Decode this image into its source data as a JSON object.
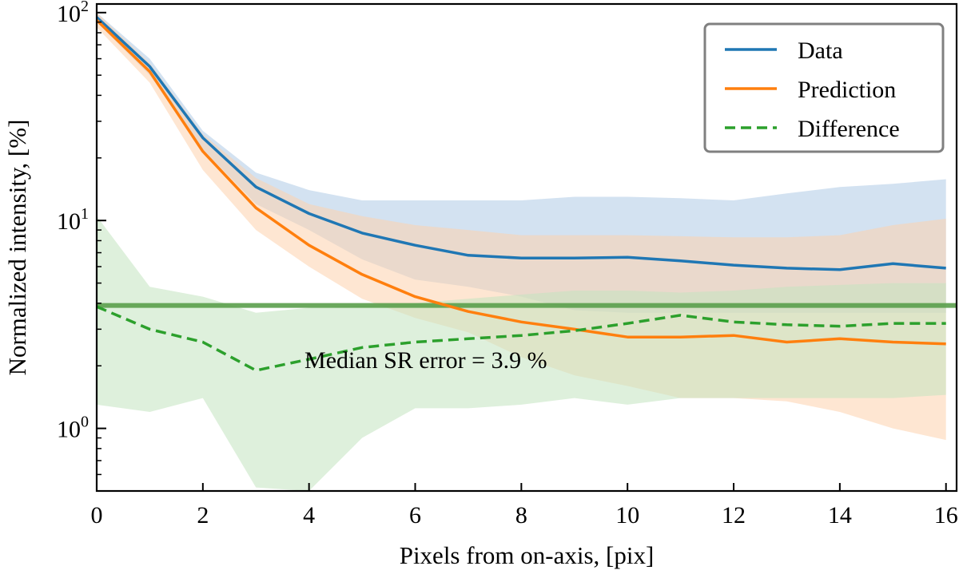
{
  "chart_data": {
    "type": "line",
    "xlabel": "Pixels from on-axis, [pix]",
    "ylabel": "Normalized intensity, [%]",
    "xlim": [
      0,
      16.2
    ],
    "ylim": [
      0.5,
      110
    ],
    "yscale": "log",
    "x_ticks": [
      0,
      2,
      4,
      6,
      8,
      10,
      12,
      14,
      16
    ],
    "y_ticks": [
      {
        "value": 1,
        "base": "10",
        "exp": "0"
      },
      {
        "value": 10,
        "base": "10",
        "exp": "1"
      },
      {
        "value": 100,
        "base": "10",
        "exp": "2"
      }
    ],
    "grid": false,
    "legend_position": "top-right",
    "x": [
      0,
      1,
      2,
      3,
      4,
      5,
      6,
      7,
      8,
      9,
      10,
      11,
      12,
      13,
      14,
      15,
      16
    ],
    "series": [
      {
        "name": "Data",
        "color": "#1f77b4",
        "style": "solid",
        "values": [
          95,
          55,
          25,
          14.5,
          10.8,
          8.7,
          7.6,
          6.8,
          6.6,
          6.6,
          6.65,
          6.4,
          6.1,
          5.9,
          5.8,
          6.2,
          5.9
        ],
        "band_upper": [
          100,
          60,
          27,
          17,
          14,
          12.5,
          12.5,
          12.5,
          12.5,
          13,
          13,
          12.8,
          12.5,
          13.5,
          14.5,
          15,
          15.8
        ],
        "band_lower": [
          90,
          50,
          22,
          12,
          9,
          6.5,
          5.2,
          4.8,
          4.3,
          3.7,
          3.6,
          3.6,
          3.6,
          3.6,
          3.6,
          3.6,
          3.6
        ],
        "band_color": "#aecbe6"
      },
      {
        "name": "Prediction",
        "color": "#ff7f0e",
        "style": "solid",
        "values": [
          92,
          52,
          21.5,
          11.5,
          7.6,
          5.5,
          4.3,
          3.65,
          3.25,
          3.0,
          2.75,
          2.75,
          2.8,
          2.6,
          2.7,
          2.6,
          2.55
        ],
        "band_upper": [
          100,
          57,
          26,
          16,
          12,
          10.5,
          9.5,
          9,
          8.5,
          8.5,
          8.5,
          8.4,
          8.3,
          8.3,
          8.5,
          9.5,
          10.2
        ],
        "band_lower": [
          85,
          46,
          17.5,
          9,
          6,
          4.2,
          3.4,
          2.9,
          2.2,
          1.8,
          1.6,
          1.4,
          1.4,
          1.35,
          1.2,
          1.0,
          0.88
        ],
        "band_color": "#fdd1ad"
      },
      {
        "name": "Difference",
        "color": "#2ca02c",
        "style": "dashed",
        "values": [
          3.85,
          3.0,
          2.6,
          1.9,
          2.15,
          2.45,
          2.6,
          2.7,
          2.8,
          2.95,
          3.2,
          3.5,
          3.25,
          3.15,
          3.1,
          3.2,
          3.2
        ],
        "band_upper": [
          10.5,
          4.8,
          4.3,
          3.6,
          3.8,
          3.9,
          4.0,
          4.2,
          4.4,
          4.6,
          4.6,
          4.5,
          4.6,
          4.8,
          4.9,
          5.0,
          5.0
        ],
        "band_lower": [
          1.3,
          1.2,
          1.4,
          0.52,
          0.5,
          0.9,
          1.25,
          1.25,
          1.3,
          1.4,
          1.3,
          1.4,
          1.4,
          1.4,
          1.4,
          1.4,
          1.45
        ],
        "band_color": "#c2e4c0"
      }
    ],
    "hline": {
      "value": 3.9,
      "color": "#5a9e4b"
    },
    "annotation": {
      "text": "Median SR error = 3.9 %",
      "x": 6.2,
      "y": 1.95
    }
  }
}
